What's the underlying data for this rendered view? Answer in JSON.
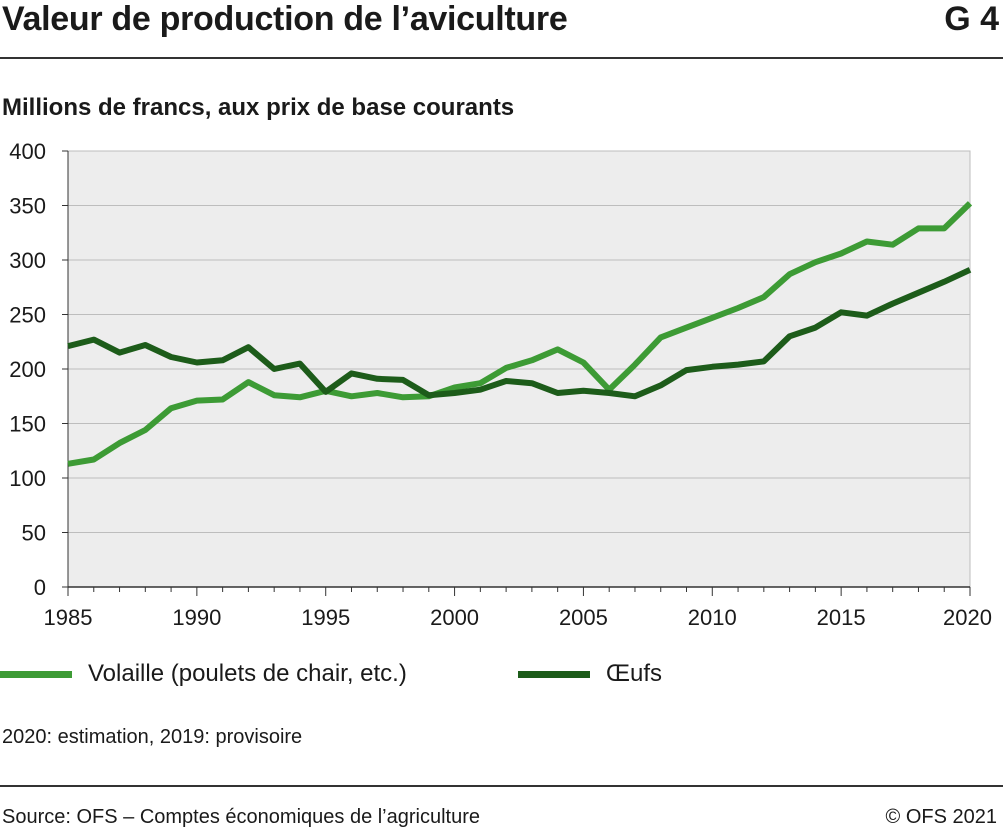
{
  "header": {
    "title": "Valeur de production de l’aviculture",
    "code": "G 4"
  },
  "chart_data": {
    "type": "line",
    "title": "Valeur de production de l’aviculture",
    "subtitle": "Millions de francs, aux prix de base courants",
    "xlabel": "",
    "ylabel": "",
    "xlim": [
      1985,
      2020
    ],
    "ylim": [
      0,
      400
    ],
    "x_ticks": [
      1985,
      1990,
      1995,
      2000,
      2005,
      2010,
      2015,
      2020
    ],
    "y_ticks": [
      0,
      50,
      100,
      150,
      200,
      250,
      300,
      350,
      400
    ],
    "grid": true,
    "legend_position": "bottom",
    "x": [
      1985,
      1986,
      1987,
      1988,
      1989,
      1990,
      1991,
      1992,
      1993,
      1994,
      1995,
      1996,
      1997,
      1998,
      1999,
      2000,
      2001,
      2002,
      2003,
      2004,
      2005,
      2006,
      2007,
      2008,
      2009,
      2010,
      2011,
      2012,
      2013,
      2014,
      2015,
      2016,
      2017,
      2018,
      2019,
      2020
    ],
    "series": [
      {
        "name": "Volaille (poulets de chair, etc.)",
        "color": "#3d9b35",
        "values": [
          113,
          117,
          132,
          144,
          164,
          171,
          172,
          188,
          176,
          174,
          180,
          175,
          178,
          174,
          175,
          183,
          187,
          201,
          208,
          218,
          206,
          181,
          204,
          229,
          238,
          247,
          256,
          266,
          287,
          298,
          306,
          317,
          314,
          329,
          329,
          352
        ]
      },
      {
        "name": "Œufs",
        "color": "#1d5c1a",
        "values": [
          221,
          227,
          215,
          222,
          211,
          206,
          208,
          220,
          200,
          205,
          179,
          196,
          191,
          190,
          176,
          178,
          181,
          189,
          187,
          178,
          180,
          178,
          175,
          185,
          199,
          202,
          204,
          207,
          230,
          238,
          252,
          249,
          260,
          270,
          280,
          291
        ]
      }
    ]
  },
  "note": "2020: estimation, 2019: provisoire",
  "footer": {
    "source": "Source: OFS – Comptes économiques de l’agriculture",
    "copyright": "© OFS 2021"
  }
}
